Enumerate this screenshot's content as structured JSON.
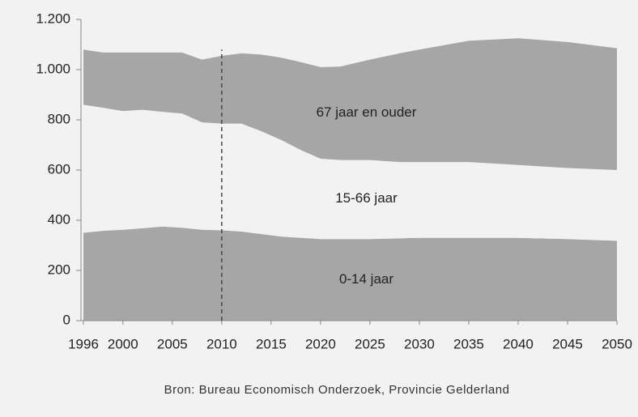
{
  "chart_data": {
    "type": "stacked_area",
    "x": [
      1996,
      1998,
      2000,
      2002,
      2004,
      2006,
      2008,
      2010,
      2012,
      2014,
      2016,
      2018,
      2020,
      2022,
      2025,
      2028,
      2030,
      2035,
      2040,
      2045,
      2050
    ],
    "series": [
      {
        "name": "0-14 jaar",
        "color": "#a6a6a6",
        "values": [
          350,
          358,
          362,
          368,
          375,
          370,
          362,
          360,
          355,
          345,
          335,
          330,
          325,
          325,
          325,
          328,
          330,
          330,
          330,
          325,
          318
        ]
      },
      {
        "name": "15-66 jaar",
        "color": "#f2f2f2",
        "values": [
          510,
          490,
          473,
          472,
          457,
          455,
          428,
          425,
          430,
          410,
          385,
          350,
          320,
          315,
          315,
          304,
          302,
          302,
          290,
          283,
          282
        ]
      },
      {
        "name": "67 jaar en ouder",
        "color": "#a6a6a6",
        "values": [
          220,
          220,
          233,
          228,
          236,
          243,
          250,
          270,
          280,
          305,
          328,
          350,
          365,
          372,
          400,
          433,
          448,
          483,
          505,
          502,
          485
        ]
      }
    ],
    "xlim": [
      1996,
      2050
    ],
    "xticks": [
      1996,
      2000,
      2005,
      2010,
      2015,
      2020,
      2025,
      2030,
      2035,
      2040,
      2045,
      2050
    ],
    "ylim": [
      0,
      1200
    ],
    "yticks": [
      0,
      200,
      400,
      600,
      800,
      {
        "value": 1000,
        "label": "1.000"
      },
      {
        "value": 1200,
        "label": "1.200"
      }
    ],
    "vline": 2010,
    "source": "Bron: Bureau Economisch Onderzoek, Provincie Gelderland"
  }
}
